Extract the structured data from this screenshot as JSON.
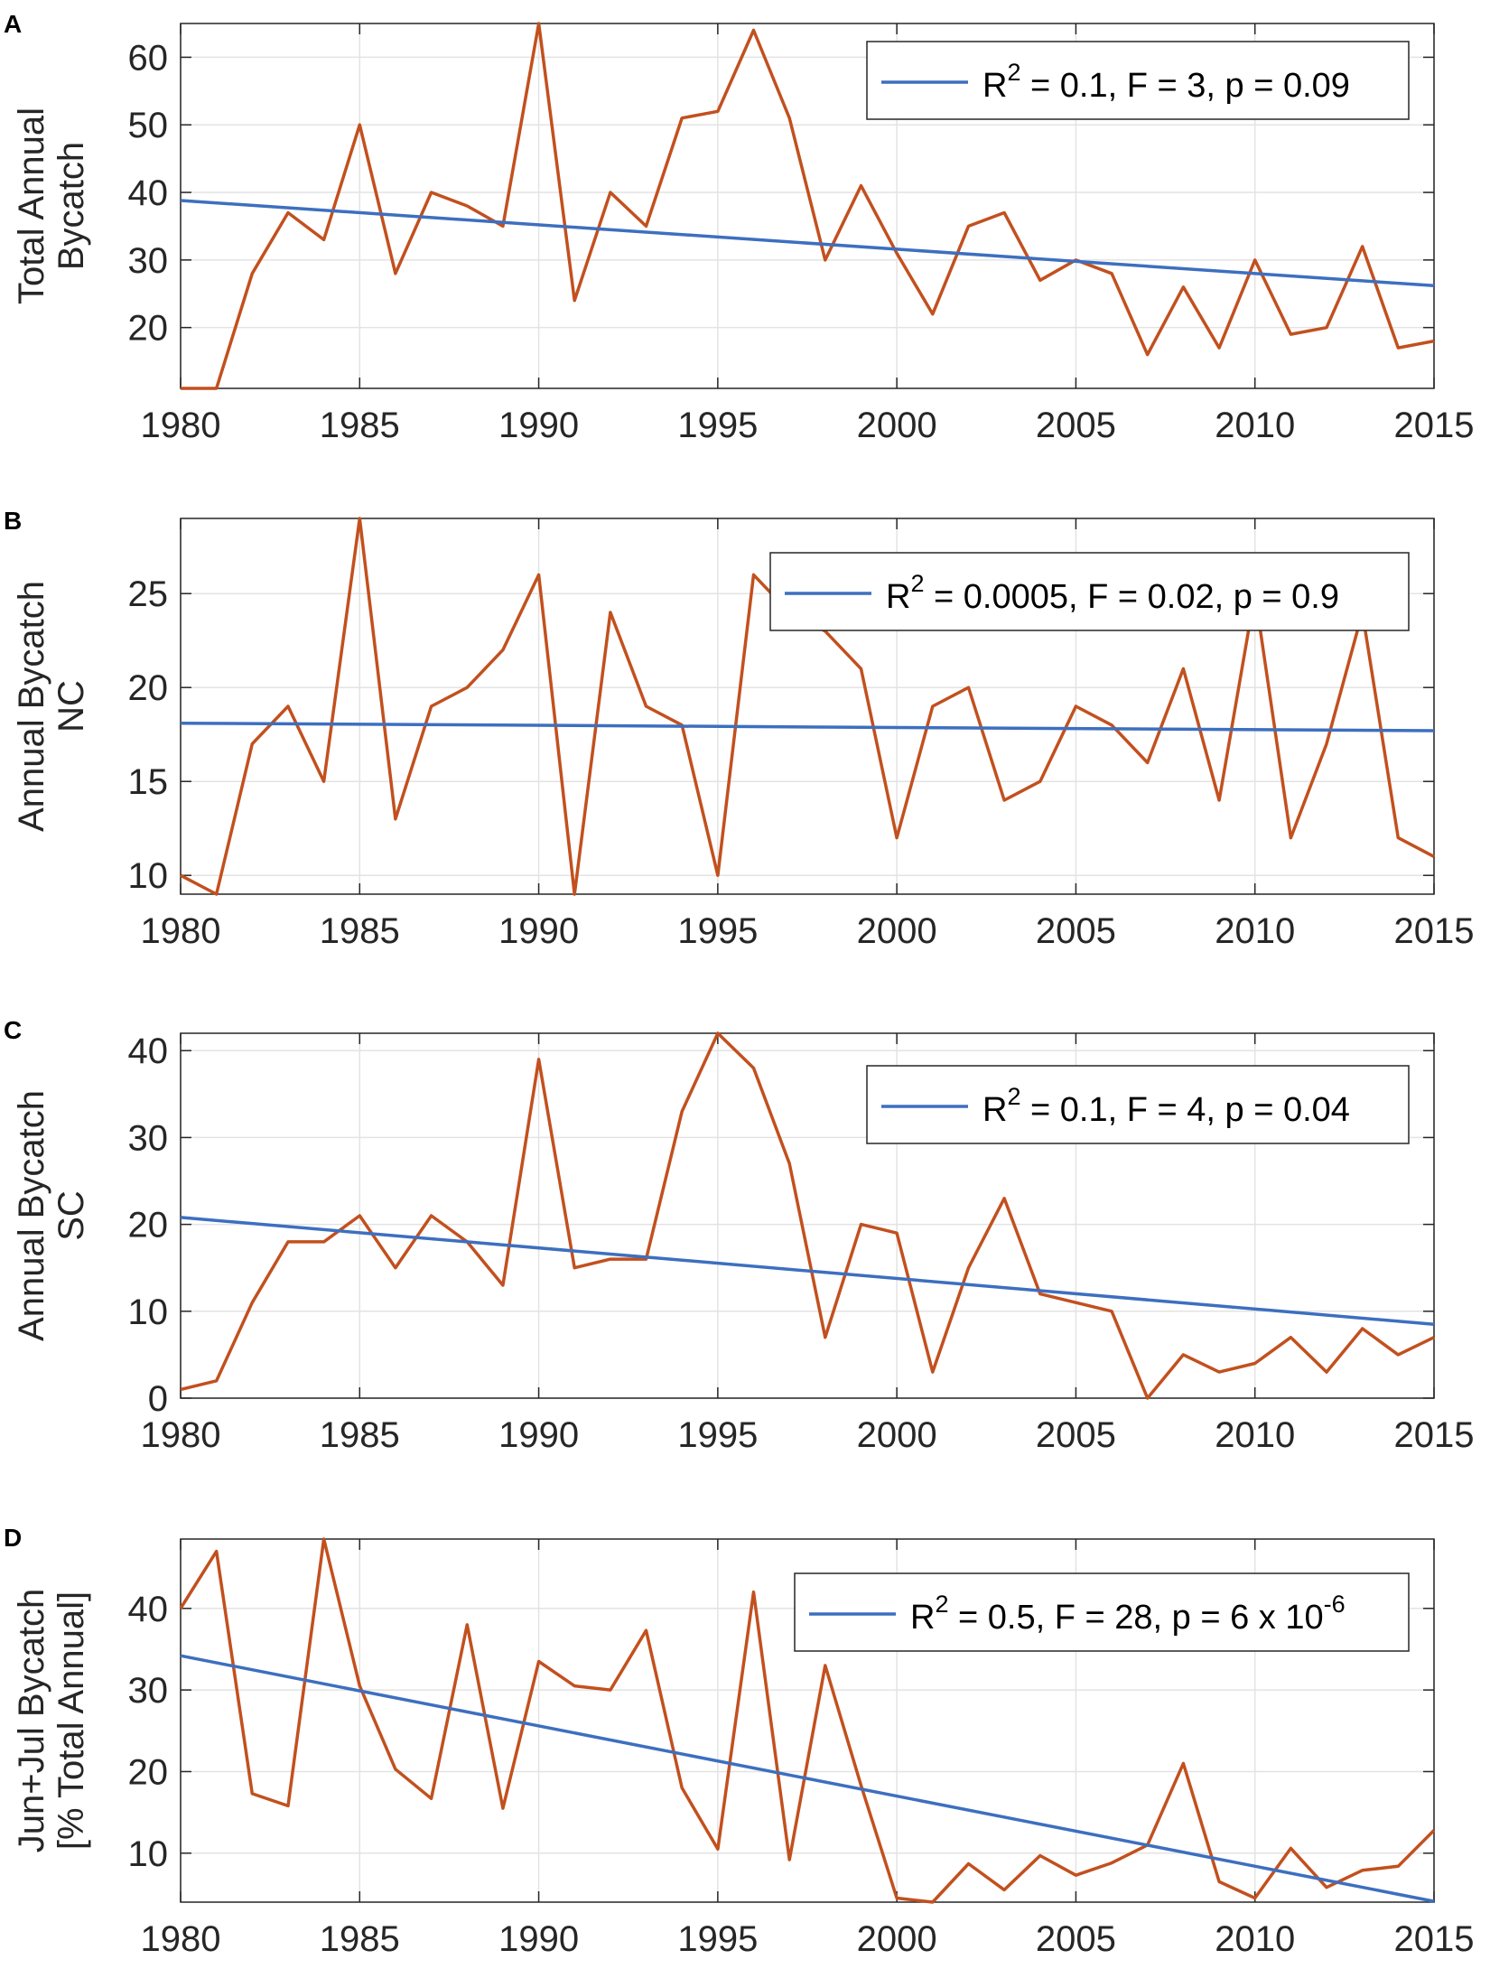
{
  "colors": {
    "data_line": "#c2501e",
    "fit_line": "#3d6fbf",
    "axis": "#262626",
    "grid": "#e3e3e3"
  },
  "chart_data": [
    {
      "panel": "A",
      "type": "line",
      "ylabel_lines": [
        "Total Annual",
        "Bycatch"
      ],
      "xlim": [
        1980,
        2015
      ],
      "ylim": [
        11,
        65
      ],
      "xticks": [
        1980,
        1985,
        1990,
        1995,
        2000,
        2005,
        2010,
        2015
      ],
      "yticks": [
        20,
        30,
        40,
        50,
        60
      ],
      "legend_position": "top-right",
      "legend": {
        "pre": "R",
        "sup": "2",
        "post": " = 0.1, F = 3, p = 0.09",
        "sup2": ""
      },
      "series": [
        {
          "name": "Bycatch",
          "x": [
            1980,
            1981,
            1982,
            1983,
            1984,
            1985,
            1986,
            1987,
            1988,
            1989,
            1990,
            1991,
            1992,
            1993,
            1994,
            1995,
            1996,
            1997,
            1998,
            1999,
            2000,
            2001,
            2002,
            2003,
            2004,
            2005,
            2006,
            2007,
            2008,
            2009,
            2010,
            2011,
            2012,
            2013,
            2014,
            2015
          ],
          "values": [
            11,
            11,
            28,
            37,
            33,
            50,
            28,
            40,
            38,
            35,
            65,
            24,
            40,
            35,
            51,
            52,
            64,
            51,
            30,
            41,
            31,
            22,
            35,
            37,
            27,
            30,
            28,
            16,
            26,
            17,
            30,
            19,
            20,
            32,
            17,
            18
          ]
        },
        {
          "name": "Linear fit",
          "x": [
            1980,
            2015
          ],
          "values": [
            38.8,
            26.2
          ]
        }
      ]
    },
    {
      "panel": "B",
      "type": "line",
      "ylabel_lines": [
        "Annual Bycatch",
        "NC"
      ],
      "xlim": [
        1980,
        2015
      ],
      "ylim": [
        9,
        29
      ],
      "xticks": [
        1980,
        1985,
        1990,
        1995,
        2000,
        2005,
        2010,
        2015
      ],
      "yticks": [
        10,
        15,
        20,
        25
      ],
      "legend_position": "top-right",
      "legend": {
        "pre": "R",
        "sup": "2",
        "post": " = 0.0005, F = 0.02, p = 0.9",
        "sup2": ""
      },
      "series": [
        {
          "name": "Bycatch",
          "x": [
            1980,
            1981,
            1982,
            1983,
            1984,
            1985,
            1986,
            1987,
            1988,
            1989,
            1990,
            1991,
            1992,
            1993,
            1994,
            1995,
            1996,
            1997,
            1998,
            1999,
            2000,
            2001,
            2002,
            2003,
            2004,
            2005,
            2006,
            2007,
            2008,
            2009,
            2010,
            2011,
            2012,
            2013,
            2014,
            2015
          ],
          "values": [
            10,
            9,
            17,
            19,
            15,
            29,
            13,
            19,
            20,
            22,
            26,
            9,
            24,
            19,
            18,
            10,
            26,
            24,
            23,
            21,
            12,
            19,
            20,
            14,
            15,
            19,
            18,
            16,
            21,
            14,
            25,
            12,
            17,
            24,
            12,
            11
          ]
        },
        {
          "name": "Linear fit",
          "x": [
            1980,
            2015
          ],
          "values": [
            18.1,
            17.7
          ]
        }
      ]
    },
    {
      "panel": "C",
      "type": "line",
      "ylabel_lines": [
        "Annual Bycatch",
        "SC"
      ],
      "xlim": [
        1980,
        2015
      ],
      "ylim": [
        0,
        42
      ],
      "xticks": [
        1980,
        1985,
        1990,
        1995,
        2000,
        2005,
        2010,
        2015
      ],
      "yticks": [
        0,
        10,
        20,
        30,
        40
      ],
      "legend_position": "top-right",
      "legend": {
        "pre": "R",
        "sup": "2",
        "post": " = 0.1, F = 4, p = 0.04",
        "sup2": ""
      },
      "series": [
        {
          "name": "Bycatch",
          "x": [
            1980,
            1981,
            1982,
            1983,
            1984,
            1985,
            1986,
            1987,
            1988,
            1989,
            1990,
            1991,
            1992,
            1993,
            1994,
            1995,
            1996,
            1997,
            1998,
            1999,
            2000,
            2001,
            2002,
            2003,
            2004,
            2005,
            2006,
            2007,
            2008,
            2009,
            2010,
            2011,
            2012,
            2013,
            2014,
            2015
          ],
          "values": [
            1,
            2,
            11,
            18,
            18,
            21,
            15,
            21,
            18,
            13,
            39,
            15,
            16,
            16,
            33,
            42,
            38,
            27,
            7,
            20,
            19,
            3,
            15,
            23,
            12,
            11,
            10,
            0,
            5,
            3,
            4,
            7,
            3,
            8,
            5,
            7
          ]
        },
        {
          "name": "Linear fit",
          "x": [
            1980,
            2015
          ],
          "values": [
            20.8,
            8.5
          ]
        }
      ]
    },
    {
      "panel": "D",
      "type": "line",
      "ylabel_lines": [
        "Jun+Jul Bycatch",
        "[% Total Annual]"
      ],
      "xlim": [
        1980,
        2015
      ],
      "ylim": [
        4,
        48.5
      ],
      "xticks": [
        1980,
        1985,
        1990,
        1995,
        2000,
        2005,
        2010,
        2015
      ],
      "yticks": [
        10,
        20,
        30,
        40
      ],
      "legend_position": "top-right",
      "legend": {
        "pre": "R",
        "sup": "2",
        "post": " = 0.5, F = 28, p = 6 x 10",
        "sup2": "-6"
      },
      "series": [
        {
          "name": "Bycatch",
          "x": [
            1980,
            1981,
            1982,
            1983,
            1984,
            1985,
            1986,
            1987,
            1988,
            1989,
            1990,
            1991,
            1992,
            1993,
            1994,
            1995,
            1996,
            1997,
            1998,
            1999,
            2000,
            2001,
            2002,
            2003,
            2004,
            2005,
            2006,
            2007,
            2008,
            2009,
            2010,
            2011,
            2012,
            2013,
            2014,
            2015
          ],
          "values": [
            40,
            47,
            17.3,
            15.8,
            48.5,
            30.5,
            20.3,
            16.7,
            38,
            15.5,
            33.5,
            30.5,
            30,
            37.3,
            18,
            10.5,
            42,
            9.2,
            33,
            18.3,
            4.5,
            4,
            8.7,
            5.5,
            9.7,
            7.3,
            8.8,
            11,
            21,
            6.5,
            4.5,
            10.6,
            5.8,
            7.9,
            8.4,
            12.8
          ]
        },
        {
          "name": "Linear fit",
          "x": [
            1980,
            2015
          ],
          "values": [
            34.2,
            4.1
          ]
        }
      ]
    }
  ]
}
